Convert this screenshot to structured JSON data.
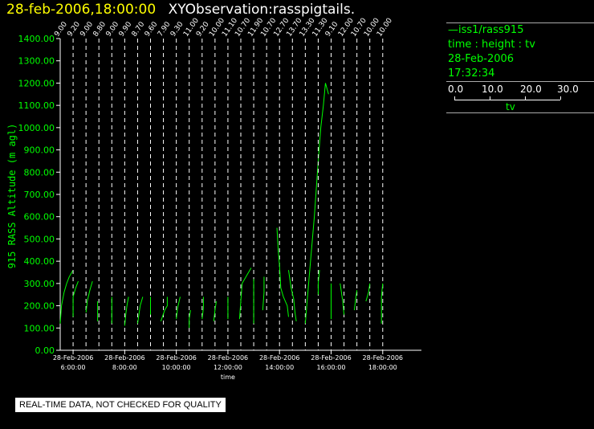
{
  "header": {
    "datetime": "28-feb-2006,18:00:00",
    "observation": "XYObservation:rasspigtails."
  },
  "legend": {
    "series": "—iss1/rass915",
    "mapping": "time : height : tv",
    "date": "28-Feb-2006",
    "time": "17:32:34",
    "scale_labels": [
      "0.0",
      "10.0",
      "20.0",
      "30.0"
    ],
    "scale_variable": "tv"
  },
  "warning": "REAL-TIME DATA, NOT CHECKED FOR QUALITY",
  "chart_data": {
    "type": "line",
    "title": "",
    "ylabel": "915 RASS Altitude (m agl)",
    "xlabel": "time",
    "ylim": [
      0,
      1400
    ],
    "xlim_hours": [
      4.5,
      18.5
    ],
    "yticks": [
      "0.00",
      "100.00",
      "200.00",
      "300.00",
      "400.00",
      "500.00",
      "600.00",
      "700.00",
      "800.00",
      "900.00",
      "1000.00",
      "1100.00",
      "1200.00",
      "1300.00",
      "1400.00"
    ],
    "xticks": [
      {
        "hour": 5,
        "date": "28-Feb-2006",
        "time": "6:00:00"
      },
      {
        "hour": 7,
        "date": "28-Feb-2006",
        "time": "8:00:00"
      },
      {
        "hour": 9,
        "date": "28-Feb-2006",
        "time": "10:00:00"
      },
      {
        "hour": 11,
        "date": "28-Feb-2006",
        "time": "12:00:00"
      },
      {
        "hour": 13,
        "date": "28-Feb-2006",
        "time": "14:00:00"
      },
      {
        "hour": 15,
        "date": "28-Feb-2006",
        "time": "16:00:00"
      },
      {
        "hour": 17,
        "date": "28-Feb-2006",
        "time": "18:00:00"
      }
    ],
    "profiles": [
      {
        "hour": 4.5,
        "label": "9.00",
        "points": [
          [
            4.5,
            120
          ],
          [
            4.55,
            200
          ],
          [
            4.65,
            260
          ],
          [
            4.75,
            300
          ],
          [
            4.85,
            330
          ],
          [
            5.0,
            360
          ]
        ]
      },
      {
        "hour": 5.0,
        "label": "9.20",
        "points": [
          [
            5.0,
            150
          ],
          [
            5.0,
            240
          ],
          [
            5.1,
            280
          ],
          [
            5.2,
            310
          ]
        ]
      },
      {
        "hour": 5.5,
        "label": "9.00",
        "points": [
          [
            5.5,
            170
          ],
          [
            5.55,
            220
          ],
          [
            5.65,
            270
          ],
          [
            5.75,
            310
          ]
        ]
      },
      {
        "hour": 6.0,
        "label": "8.80",
        "points": [
          [
            5.95,
            130
          ],
          [
            5.95,
            180
          ],
          [
            5.95,
            220
          ]
        ]
      },
      {
        "hour": 6.5,
        "label": "9.00",
        "points": [
          [
            6.5,
            120
          ],
          [
            6.5,
            200
          ],
          [
            6.5,
            240
          ]
        ]
      },
      {
        "hour": 7.0,
        "label": "9.90",
        "points": [
          [
            7.0,
            110
          ],
          [
            7.05,
            170
          ],
          [
            7.1,
            210
          ],
          [
            7.15,
            240
          ]
        ]
      },
      {
        "hour": 7.5,
        "label": "8.70",
        "points": [
          [
            7.5,
            120
          ],
          [
            7.6,
            200
          ],
          [
            7.7,
            240
          ]
        ]
      },
      {
        "hour": 8.0,
        "label": "9.60",
        "points": [
          [
            8.0,
            160
          ],
          [
            8.0,
            240
          ]
        ]
      },
      {
        "hour": 8.5,
        "label": "7.90",
        "points": [
          [
            8.4,
            130
          ],
          [
            8.55,
            180
          ],
          [
            8.65,
            200
          ],
          [
            8.65,
            240
          ]
        ]
      },
      {
        "hour": 9.0,
        "label": "9.30",
        "points": [
          [
            9.0,
            140
          ],
          [
            9.05,
            190
          ],
          [
            9.15,
            240
          ]
        ]
      },
      {
        "hour": 9.5,
        "label": "11.00",
        "points": [
          [
            9.5,
            100
          ],
          [
            9.5,
            140
          ],
          [
            9.55,
            180
          ]
        ]
      },
      {
        "hour": 10.0,
        "label": "9.20",
        "points": [
          [
            10.0,
            140
          ],
          [
            10.05,
            190
          ],
          [
            10.05,
            240
          ]
        ]
      },
      {
        "hour": 10.5,
        "label": "10.00",
        "points": [
          [
            10.45,
            130
          ],
          [
            10.5,
            180
          ],
          [
            10.55,
            220
          ]
        ]
      },
      {
        "hour": 11.0,
        "label": "11.10",
        "points": [
          [
            11.0,
            140
          ],
          [
            11.0,
            200
          ],
          [
            11.0,
            240
          ]
        ]
      },
      {
        "hour": 11.5,
        "label": "10.70",
        "points": [
          [
            11.45,
            140
          ],
          [
            11.5,
            220
          ],
          [
            11.55,
            300
          ],
          [
            11.75,
            340
          ],
          [
            11.9,
            370
          ]
        ]
      },
      {
        "hour": 12.0,
        "label": "11.90",
        "points": [
          [
            12.0,
            120
          ],
          [
            12.0,
            180
          ],
          [
            12.0,
            240
          ],
          [
            12.0,
            320
          ]
        ]
      },
      {
        "hour": 12.5,
        "label": "10.70",
        "points": [
          [
            12.35,
            180
          ],
          [
            12.4,
            260
          ],
          [
            12.4,
            330
          ]
        ]
      },
      {
        "hour": 13.0,
        "label": "12.70",
        "points": [
          [
            12.9,
            550
          ],
          [
            12.95,
            450
          ],
          [
            13.0,
            380
          ],
          [
            13.05,
            280
          ],
          [
            13.15,
            240
          ],
          [
            13.3,
            200
          ],
          [
            13.35,
            150
          ]
        ]
      },
      {
        "hour": 13.5,
        "label": "13.70",
        "points": [
          [
            13.35,
            360
          ],
          [
            13.45,
            280
          ],
          [
            13.55,
            230
          ],
          [
            13.6,
            170
          ],
          [
            13.65,
            130
          ]
        ]
      },
      {
        "hour": 14.0,
        "label": "13.30",
        "points": [
          [
            14.0,
            120
          ],
          [
            14.15,
            330
          ],
          [
            14.35,
            600
          ],
          [
            14.5,
            850
          ],
          [
            14.6,
            1000
          ],
          [
            14.7,
            1100
          ],
          [
            14.78,
            1200
          ],
          [
            14.9,
            1150
          ]
        ]
      },
      {
        "hour": 14.5,
        "label": "11.30",
        "points": [
          [
            14.5,
            250
          ],
          [
            14.5,
            300
          ],
          [
            14.55,
            360
          ]
        ]
      },
      {
        "hour": 15.0,
        "label": "9.10",
        "points": [
          [
            15.0,
            140
          ],
          [
            15.0,
            220
          ],
          [
            15.0,
            300
          ]
        ]
      },
      {
        "hour": 15.5,
        "label": "12.00",
        "points": [
          [
            15.35,
            300
          ],
          [
            15.45,
            220
          ],
          [
            15.5,
            160
          ]
        ]
      },
      {
        "hour": 16.0,
        "label": "10.70",
        "points": [
          [
            15.9,
            180
          ],
          [
            15.95,
            230
          ],
          [
            16.0,
            270
          ]
        ]
      },
      {
        "hour": 16.5,
        "label": "10.00",
        "points": [
          [
            16.35,
            220
          ],
          [
            16.45,
            260
          ],
          [
            16.5,
            300
          ]
        ]
      },
      {
        "hour": 17.0,
        "label": "10.00",
        "points": [
          [
            16.95,
            120
          ],
          [
            16.95,
            200
          ],
          [
            16.95,
            240
          ],
          [
            17.0,
            300
          ]
        ]
      }
    ]
  },
  "colors": {
    "background": "#000000",
    "series": "#00ff00",
    "axis": "#ffffff",
    "title_date": "#ffff00",
    "ytick_labels": "#00ff00",
    "xtick_labels": "#ffffff"
  }
}
